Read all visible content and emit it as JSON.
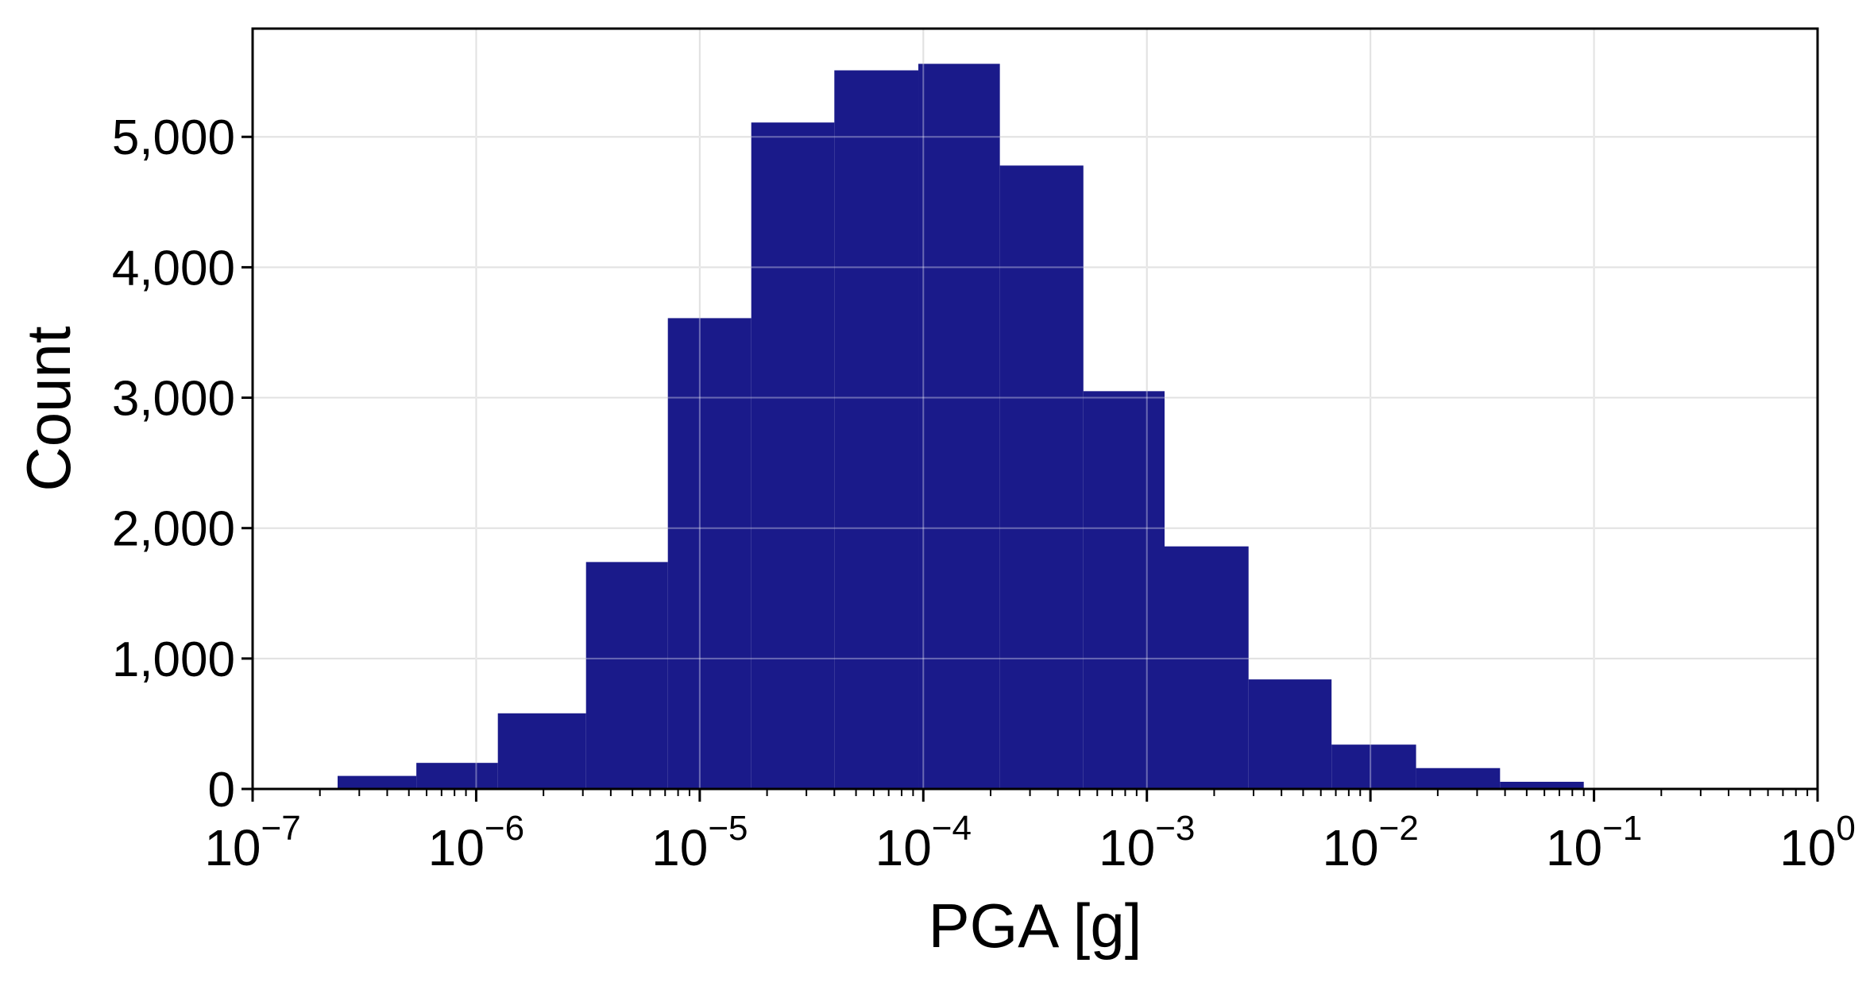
{
  "chart_data": {
    "type": "bar",
    "subtype": "histogram",
    "xlabel": "PGA [g]",
    "ylabel": "Count",
    "x_scale": "log",
    "xlim": [
      1e-07,
      1
    ],
    "ylim": [
      0,
      5830
    ],
    "grid": true,
    "bar_color": "#1a1a8a",
    "grid_color": "#d3d3d3",
    "x_ticks": [
      {
        "value": 1e-07,
        "base": "10",
        "exp": "−7"
      },
      {
        "value": 1e-06,
        "base": "10",
        "exp": "−6"
      },
      {
        "value": 1e-05,
        "base": "10",
        "exp": "−5"
      },
      {
        "value": 0.0001,
        "base": "10",
        "exp": "−4"
      },
      {
        "value": 0.001,
        "base": "10",
        "exp": "−3"
      },
      {
        "value": 0.01,
        "base": "10",
        "exp": "−2"
      },
      {
        "value": 0.1,
        "base": "10",
        "exp": "−1"
      },
      {
        "value": 1,
        "base": "10",
        "exp": "0"
      }
    ],
    "y_ticks": [
      {
        "value": 0,
        "label": "0"
      },
      {
        "value": 1000,
        "label": "1,000"
      },
      {
        "value": 2000,
        "label": "2,000"
      },
      {
        "value": 3000,
        "label": "3,000"
      },
      {
        "value": 4000,
        "label": "4,000"
      },
      {
        "value": 5000,
        "label": "5,000"
      }
    ],
    "bins": [
      {
        "x0": 2.4e-07,
        "x1": 5.4e-07,
        "count": 100
      },
      {
        "x0": 5.4e-07,
        "x1": 1.25e-06,
        "count": 200
      },
      {
        "x0": 1.25e-06,
        "x1": 3.1e-06,
        "count": 580
      },
      {
        "x0": 3.1e-06,
        "x1": 7.2e-06,
        "count": 1740
      },
      {
        "x0": 7.2e-06,
        "x1": 1.7e-05,
        "count": 3610
      },
      {
        "x0": 1.7e-05,
        "x1": 4e-05,
        "count": 5110
      },
      {
        "x0": 4e-05,
        "x1": 9.5e-05,
        "count": 5510
      },
      {
        "x0": 9.5e-05,
        "x1": 0.00022,
        "count": 5560
      },
      {
        "x0": 0.00022,
        "x1": 0.00052,
        "count": 4780
      },
      {
        "x0": 0.00052,
        "x1": 0.0012,
        "count": 3050
      },
      {
        "x0": 0.0012,
        "x1": 0.00285,
        "count": 1860
      },
      {
        "x0": 0.00285,
        "x1": 0.0067,
        "count": 840
      },
      {
        "x0": 0.0067,
        "x1": 0.016,
        "count": 340
      },
      {
        "x0": 0.016,
        "x1": 0.038,
        "count": 160
      },
      {
        "x0": 0.038,
        "x1": 0.09,
        "count": 55
      }
    ]
  }
}
